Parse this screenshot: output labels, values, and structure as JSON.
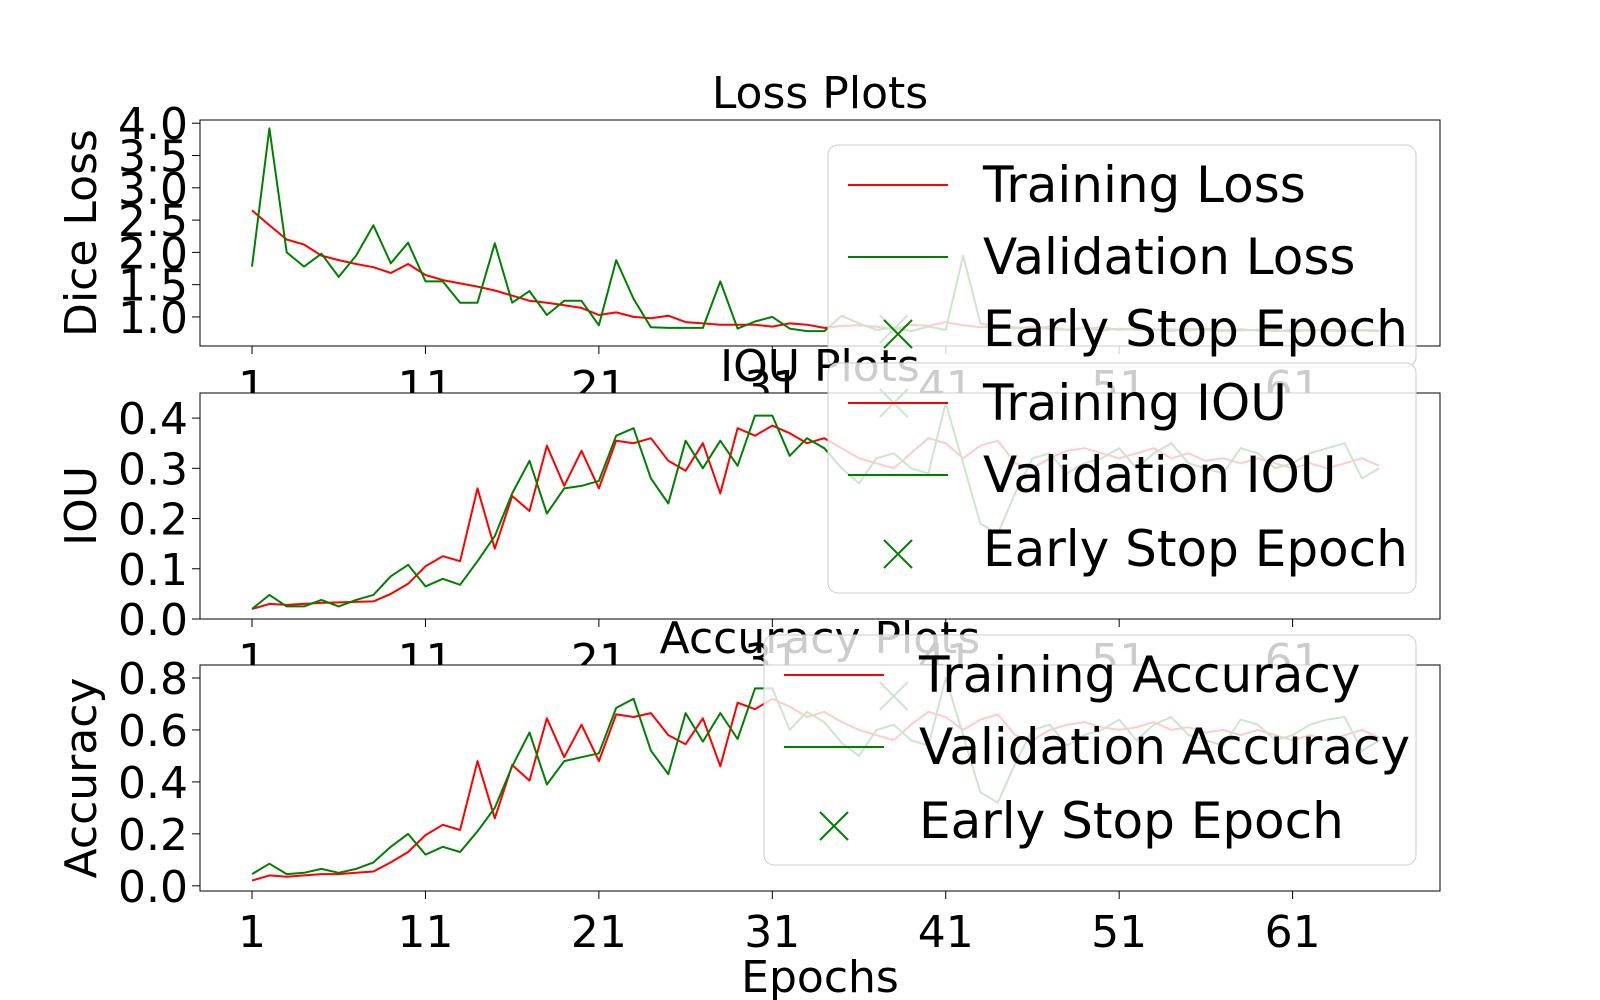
{
  "colors": {
    "training": "#ff0000",
    "validation": "#008000",
    "early_stop": "#008000"
  },
  "chart_data": [
    {
      "type": "line",
      "title": "Loss Plots",
      "ylabel": "Dice Loss",
      "xlabel": "",
      "xlim": [
        -2,
        69.5
      ],
      "ylim": [
        0.55,
        4.05
      ],
      "xticks": [
        1,
        11,
        21,
        31,
        41,
        51,
        61
      ],
      "yticks": [
        1.0,
        1.5,
        2.0,
        2.5,
        3.0,
        3.5,
        4.0
      ],
      "ytick_labels": [
        "1.0",
        "1.5",
        "2.0",
        "2.5",
        "3.0",
        "3.5",
        "4.0"
      ],
      "legend_position": "upper right",
      "early_stop": {
        "x": 38,
        "y": 0.81
      },
      "series": [
        {
          "name": "Training Loss",
          "color": "#ff0000",
          "x_start": 1,
          "values": [
            2.65,
            2.42,
            2.2,
            2.12,
            1.95,
            1.88,
            1.82,
            1.77,
            1.68,
            1.82,
            1.65,
            1.57,
            1.52,
            1.47,
            1.41,
            1.33,
            1.25,
            1.22,
            1.18,
            1.14,
            1.03,
            1.07,
            1.0,
            0.98,
            1.02,
            0.92,
            0.9,
            0.88,
            0.88,
            0.88,
            0.85,
            0.9,
            0.88,
            0.83,
            0.86,
            0.87,
            0.85,
            0.81,
            0.88,
            0.86,
            0.92,
            0.87,
            0.84,
            0.86,
            0.82,
            0.85,
            0.81,
            0.8,
            0.83,
            0.79,
            0.82,
            0.8,
            0.81,
            0.78,
            0.82,
            0.8,
            0.78,
            0.81,
            0.79,
            0.8,
            0.77,
            0.8,
            0.79,
            0.78,
            0.79,
            0.78
          ]
        },
        {
          "name": "Validation Loss",
          "color": "#008000",
          "x_start": 1,
          "values": [
            1.78,
            3.92,
            2.0,
            1.78,
            1.98,
            1.62,
            1.95,
            2.42,
            1.83,
            2.15,
            1.55,
            1.55,
            1.22,
            1.22,
            2.14,
            1.22,
            1.4,
            1.03,
            1.25,
            1.25,
            0.87,
            1.88,
            1.28,
            0.84,
            0.83,
            0.83,
            0.83,
            1.55,
            0.82,
            0.93,
            1.0,
            0.82,
            0.78,
            0.78,
            1.02,
            0.9,
            0.8,
            0.83,
            0.78,
            0.85,
            0.8,
            1.95,
            0.9,
            0.85,
            0.84,
            0.82,
            0.85,
            0.8,
            0.82,
            0.84,
            0.8,
            0.82,
            0.8,
            0.81,
            0.79,
            0.82,
            0.8,
            0.79,
            0.8,
            0.78,
            0.8,
            0.79,
            0.8,
            0.79,
            0.8,
            0.79
          ]
        }
      ],
      "legend": {
        "training": "Training Loss",
        "validation": "Validation Loss",
        "early_stop": "Early Stop Epoch"
      }
    },
    {
      "type": "line",
      "title": "IOU Plots",
      "ylabel": "IOU",
      "xlabel": "",
      "xlim": [
        -2,
        69.5
      ],
      "ylim": [
        0.0,
        0.45
      ],
      "xticks": [
        1,
        11,
        21,
        31,
        41,
        51,
        61
      ],
      "yticks": [
        0.0,
        0.1,
        0.2,
        0.3,
        0.4
      ],
      "ytick_labels": [
        "0.0",
        "0.1",
        "0.2",
        "0.3",
        "0.4"
      ],
      "legend_position": "upper right",
      "early_stop": {
        "x": 38,
        "y": 0.43
      },
      "series": [
        {
          "name": "Training IOU",
          "color": "#ff0000",
          "x_start": 1,
          "values": [
            0.02,
            0.03,
            0.028,
            0.03,
            0.032,
            0.033,
            0.034,
            0.035,
            0.05,
            0.07,
            0.105,
            0.125,
            0.115,
            0.26,
            0.14,
            0.245,
            0.215,
            0.345,
            0.265,
            0.335,
            0.26,
            0.355,
            0.35,
            0.36,
            0.315,
            0.295,
            0.35,
            0.25,
            0.38,
            0.365,
            0.385,
            0.37,
            0.35,
            0.36,
            0.34,
            0.32,
            0.31,
            0.3,
            0.33,
            0.36,
            0.35,
            0.32,
            0.345,
            0.355,
            0.31,
            0.3,
            0.32,
            0.335,
            0.34,
            0.33,
            0.32,
            0.33,
            0.34,
            0.32,
            0.33,
            0.315,
            0.32,
            0.31,
            0.32,
            0.31,
            0.3,
            0.31,
            0.3,
            0.31,
            0.32,
            0.305
          ]
        },
        {
          "name": "Validation IOU",
          "color": "#008000",
          "x_start": 1,
          "values": [
            0.02,
            0.048,
            0.025,
            0.025,
            0.038,
            0.025,
            0.038,
            0.048,
            0.085,
            0.108,
            0.065,
            0.08,
            0.068,
            0.115,
            0.165,
            0.25,
            0.315,
            0.21,
            0.26,
            0.265,
            0.275,
            0.365,
            0.38,
            0.28,
            0.23,
            0.355,
            0.3,
            0.355,
            0.305,
            0.405,
            0.405,
            0.325,
            0.36,
            0.34,
            0.3,
            0.27,
            0.32,
            0.33,
            0.3,
            0.29,
            0.43,
            0.31,
            0.19,
            0.17,
            0.25,
            0.32,
            0.33,
            0.29,
            0.31,
            0.32,
            0.34,
            0.3,
            0.33,
            0.35,
            0.31,
            0.3,
            0.29,
            0.34,
            0.33,
            0.3,
            0.31,
            0.33,
            0.34,
            0.35,
            0.28,
            0.3
          ]
        }
      ],
      "legend": {
        "training": "Training IOU",
        "validation": "Validation IOU",
        "early_stop": "Early Stop Epoch"
      }
    },
    {
      "type": "line",
      "title": "Accuracy Plots",
      "ylabel": "Accuracy",
      "xlabel": "Epochs",
      "xlim": [
        -2,
        69.5
      ],
      "ylim": [
        -0.02,
        0.85
      ],
      "xticks": [
        1,
        11,
        21,
        31,
        41,
        51,
        61
      ],
      "yticks": [
        0.0,
        0.2,
        0.4,
        0.6,
        0.8
      ],
      "ytick_labels": [
        "0.0",
        "0.2",
        "0.4",
        "0.6",
        "0.8"
      ],
      "legend_position": "upper right",
      "early_stop": {
        "x": 38,
        "y": 0.73
      },
      "series": [
        {
          "name": "Training Accuracy",
          "color": "#ff0000",
          "x_start": 1,
          "values": [
            0.02,
            0.04,
            0.035,
            0.04,
            0.045,
            0.045,
            0.05,
            0.055,
            0.09,
            0.13,
            0.195,
            0.235,
            0.215,
            0.48,
            0.26,
            0.465,
            0.405,
            0.645,
            0.495,
            0.62,
            0.48,
            0.66,
            0.65,
            0.665,
            0.58,
            0.545,
            0.645,
            0.46,
            0.705,
            0.68,
            0.72,
            0.69,
            0.65,
            0.67,
            0.63,
            0.6,
            0.58,
            0.56,
            0.62,
            0.67,
            0.65,
            0.6,
            0.64,
            0.66,
            0.58,
            0.56,
            0.6,
            0.62,
            0.63,
            0.61,
            0.6,
            0.61,
            0.63,
            0.6,
            0.61,
            0.59,
            0.6,
            0.58,
            0.6,
            0.58,
            0.56,
            0.58,
            0.56,
            0.58,
            0.6,
            0.57
          ]
        },
        {
          "name": "Validation Accuracy",
          "color": "#008000",
          "x_start": 1,
          "values": [
            0.045,
            0.085,
            0.045,
            0.05,
            0.065,
            0.05,
            0.065,
            0.09,
            0.15,
            0.2,
            0.12,
            0.15,
            0.13,
            0.21,
            0.3,
            0.46,
            0.59,
            0.39,
            0.48,
            0.495,
            0.51,
            0.685,
            0.72,
            0.52,
            0.43,
            0.665,
            0.555,
            0.665,
            0.565,
            0.76,
            0.76,
            0.6,
            0.67,
            0.63,
            0.55,
            0.5,
            0.6,
            0.62,
            0.56,
            0.54,
            0.8,
            0.58,
            0.36,
            0.32,
            0.47,
            0.6,
            0.62,
            0.54,
            0.58,
            0.6,
            0.64,
            0.56,
            0.62,
            0.65,
            0.58,
            0.56,
            0.54,
            0.64,
            0.62,
            0.56,
            0.58,
            0.62,
            0.64,
            0.65,
            0.52,
            0.56
          ]
        }
      ],
      "legend": {
        "training": "Training Accuracy",
        "validation": "Validation Accuracy",
        "early_stop": "Early Stop Epoch"
      }
    }
  ]
}
